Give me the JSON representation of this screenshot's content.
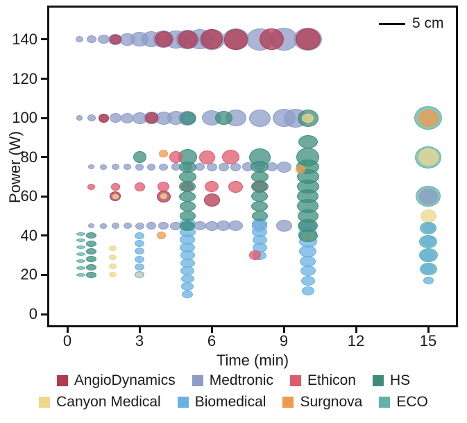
{
  "scalebar": {
    "label": "5 cm"
  },
  "axes": {
    "x": {
      "label": "Time (min)",
      "ticks": [
        0,
        3,
        6,
        9,
        12,
        15
      ]
    },
    "y": {
      "label": "Power (W)",
      "ticks": [
        0,
        20,
        40,
        60,
        80,
        100,
        120,
        140
      ]
    }
  },
  "brands": {
    "angiodynamics": {
      "label": "AngioDynamics",
      "color": "#b23a50"
    },
    "medtronic": {
      "label": "Medtronic",
      "color": "#8d9cc7"
    },
    "ethicon": {
      "label": "Ethicon",
      "color": "#e05a6e"
    },
    "hs": {
      "label": "HS",
      "color": "#3d8d7e"
    },
    "canyon": {
      "label": "Canyon Medical",
      "color": "#efd78d"
    },
    "biomedical": {
      "label": "Biomedical",
      "color": "#6ab1e2"
    },
    "surgnova": {
      "label": "Surgnova",
      "color": "#f09a4c"
    },
    "eco": {
      "label": "ECO",
      "color": "#62b3a6"
    }
  },
  "legend": {
    "rows": [
      [
        "angiodynamics",
        "medtronic",
        "ethicon",
        "hs"
      ],
      [
        "canyon",
        "biomedical",
        "surgnova",
        "eco"
      ]
    ]
  },
  "chart_data": {
    "type": "scatter",
    "subtype": "bubble",
    "xlabel": "Time (min)",
    "ylabel": "Power (W)",
    "x_range": [
      -0.8,
      16.2
    ],
    "y_range": [
      -7,
      157
    ],
    "size_scale_label": "5 cm",
    "point_format": [
      "time_min",
      "power_W",
      "bubble_w_px",
      "bubble_h_px",
      "brand"
    ],
    "points": [
      [
        0.5,
        140,
        11,
        9,
        "medtronic"
      ],
      [
        1,
        140,
        14,
        11,
        "medtronic"
      ],
      [
        1.5,
        140,
        17,
        13,
        "medtronic"
      ],
      [
        2,
        140,
        20,
        16,
        "medtronic"
      ],
      [
        2.5,
        140,
        23,
        18,
        "medtronic"
      ],
      [
        3,
        140,
        26,
        21,
        "medtronic"
      ],
      [
        3.5,
        140,
        28,
        23,
        "medtronic"
      ],
      [
        4,
        140,
        31,
        25,
        "medtronic"
      ],
      [
        4.5,
        140,
        33,
        26,
        "medtronic"
      ],
      [
        5,
        140,
        34,
        28,
        "medtronic"
      ],
      [
        5.5,
        140,
        36,
        29,
        "medtronic"
      ],
      [
        6,
        140,
        37,
        30,
        "medtronic"
      ],
      [
        7,
        140,
        38,
        31,
        "medtronic"
      ],
      [
        8,
        140,
        39,
        32,
        "medtronic"
      ],
      [
        9,
        140,
        40,
        33,
        "medtronic"
      ],
      [
        10,
        140,
        41,
        33,
        "medtronic"
      ],
      [
        2,
        140,
        17,
        14,
        "angiodynamics"
      ],
      [
        4,
        140,
        26,
        23,
        "angiodynamics"
      ],
      [
        5,
        140,
        29,
        26,
        "angiodynamics"
      ],
      [
        6,
        140,
        32,
        29,
        "angiodynamics"
      ],
      [
        7,
        140,
        34,
        30,
        "angiodynamics"
      ],
      [
        8.5,
        140,
        35,
        31,
        "angiodynamics"
      ],
      [
        10,
        140,
        36,
        31,
        "angiodynamics"
      ],
      [
        0.5,
        100,
        9,
        8,
        "medtronic"
      ],
      [
        1,
        100,
        12,
        10,
        "medtronic"
      ],
      [
        1.5,
        100,
        15,
        12,
        "medtronic"
      ],
      [
        2,
        100,
        17,
        14,
        "medtronic"
      ],
      [
        2.5,
        100,
        19,
        15,
        "medtronic"
      ],
      [
        3,
        100,
        21,
        17,
        "medtronic"
      ],
      [
        3.5,
        100,
        23,
        18,
        "medtronic"
      ],
      [
        4,
        100,
        24,
        19,
        "medtronic"
      ],
      [
        4.5,
        100,
        25,
        20,
        "medtronic"
      ],
      [
        5,
        100,
        26,
        21,
        "medtronic"
      ],
      [
        6,
        100,
        28,
        22,
        "medtronic"
      ],
      [
        7,
        100,
        30,
        24,
        "medtronic"
      ],
      [
        8,
        100,
        31,
        25,
        "medtronic"
      ],
      [
        9,
        100,
        33,
        26,
        "medtronic"
      ],
      [
        9.5,
        100,
        34,
        27,
        "medtronic"
      ],
      [
        1.5,
        100,
        15,
        13,
        "angiodynamics"
      ],
      [
        3.5,
        100,
        19,
        16,
        "angiodynamics"
      ],
      [
        5,
        100,
        23,
        19,
        "hs"
      ],
      [
        6.5,
        100,
        25,
        20,
        "hs"
      ],
      [
        10,
        100,
        30,
        25,
        "hs"
      ],
      [
        10,
        100,
        17,
        13,
        "canyon"
      ],
      [
        3,
        80,
        19,
        17,
        "hs"
      ],
      [
        5,
        80,
        27,
        23,
        "hs"
      ],
      [
        8,
        80,
        31,
        26,
        "hs"
      ],
      [
        10,
        80,
        33,
        27,
        "hs"
      ],
      [
        4.5,
        80,
        19,
        17,
        "ethicon"
      ],
      [
        5.8,
        80,
        23,
        20,
        "ethicon"
      ],
      [
        6.8,
        80,
        25,
        21,
        "ethicon"
      ],
      [
        4,
        82,
        13,
        11,
        "surgnova"
      ],
      [
        1,
        75,
        9,
        7,
        "medtronic"
      ],
      [
        1.5,
        75,
        10,
        8,
        "medtronic"
      ],
      [
        2,
        75,
        11,
        9,
        "medtronic"
      ],
      [
        2.5,
        75,
        11,
        9,
        "medtronic"
      ],
      [
        3,
        75,
        12,
        10,
        "medtronic"
      ],
      [
        3.5,
        75,
        12,
        10,
        "medtronic"
      ],
      [
        4,
        75,
        13,
        10,
        "medtronic"
      ],
      [
        4.5,
        75,
        13,
        11,
        "medtronic"
      ],
      [
        5,
        75,
        14,
        11,
        "medtronic"
      ],
      [
        5.5,
        75,
        14,
        11,
        "medtronic"
      ],
      [
        6,
        75,
        15,
        12,
        "medtronic"
      ],
      [
        6.5,
        75,
        15,
        12,
        "medtronic"
      ],
      [
        7,
        75,
        15,
        12,
        "medtronic"
      ],
      [
        7.5,
        75,
        16,
        13,
        "medtronic"
      ],
      [
        8,
        75,
        16,
        13,
        "medtronic"
      ],
      [
        8.5,
        75,
        16,
        13,
        "medtronic"
      ],
      [
        9,
        75,
        21,
        16,
        "medtronic"
      ],
      [
        1,
        65,
        11,
        9,
        "ethicon"
      ],
      [
        2,
        65,
        13,
        11,
        "ethicon"
      ],
      [
        3,
        65,
        15,
        13,
        "ethicon"
      ],
      [
        4,
        65,
        17,
        14,
        "ethicon"
      ],
      [
        5,
        65,
        18,
        15,
        "ethicon"
      ],
      [
        6,
        65,
        20,
        16,
        "ethicon"
      ],
      [
        7,
        65,
        21,
        17,
        "ethicon"
      ],
      [
        8,
        65,
        22,
        18,
        "ethicon"
      ],
      [
        2,
        60,
        16,
        14,
        "angiodynamics"
      ],
      [
        2,
        60,
        9,
        7,
        "canyon"
      ],
      [
        4,
        60,
        20,
        17,
        "angiodynamics"
      ],
      [
        4,
        60,
        10,
        8,
        "canyon"
      ],
      [
        6,
        58,
        23,
        19,
        "angiodynamics"
      ],
      [
        1,
        45,
        9,
        7,
        "medtronic"
      ],
      [
        1.5,
        45,
        10,
        8,
        "medtronic"
      ],
      [
        2,
        45,
        11,
        9,
        "medtronic"
      ],
      [
        2.5,
        45,
        12,
        9,
        "medtronic"
      ],
      [
        3,
        45,
        13,
        10,
        "medtronic"
      ],
      [
        3.5,
        45,
        14,
        11,
        "medtronic"
      ],
      [
        4,
        45,
        15,
        11,
        "medtronic"
      ],
      [
        4.5,
        45,
        16,
        12,
        "medtronic"
      ],
      [
        5,
        45,
        17,
        13,
        "medtronic"
      ],
      [
        5.5,
        45,
        18,
        13,
        "medtronic"
      ],
      [
        6,
        45,
        19,
        14,
        "medtronic"
      ],
      [
        6.5,
        45,
        20,
        15,
        "medtronic"
      ],
      [
        7,
        45,
        21,
        15,
        "medtronic"
      ],
      [
        8,
        45,
        22,
        16,
        "medtronic"
      ],
      [
        9,
        45,
        23,
        17,
        "medtronic"
      ],
      [
        10,
        45,
        25,
        18,
        "medtronic"
      ],
      [
        0.55,
        20,
        13,
        5,
        "eco"
      ],
      [
        0.55,
        23.5,
        13,
        5,
        "eco"
      ],
      [
        0.55,
        27,
        13,
        5,
        "eco"
      ],
      [
        0.55,
        30.5,
        13,
        5,
        "eco"
      ],
      [
        0.55,
        34,
        13,
        5,
        "eco"
      ],
      [
        0.55,
        37.5,
        13,
        5,
        "eco"
      ],
      [
        0.55,
        41,
        13,
        5,
        "eco"
      ],
      [
        1,
        20,
        15,
        9,
        "hs"
      ],
      [
        1,
        24,
        15,
        9,
        "hs"
      ],
      [
        1,
        28,
        15,
        9,
        "hs"
      ],
      [
        1,
        32,
        15,
        9,
        "hs"
      ],
      [
        1,
        36,
        15,
        9,
        "hs"
      ],
      [
        1,
        40,
        15,
        9,
        "hs"
      ],
      [
        1.9,
        20,
        11,
        8,
        "canyon"
      ],
      [
        1.9,
        24.5,
        11,
        8,
        "canyon"
      ],
      [
        1.9,
        29,
        11,
        8,
        "canyon"
      ],
      [
        1.9,
        33.5,
        11,
        8,
        "canyon"
      ],
      [
        3,
        20,
        14,
        10,
        "biomedical"
      ],
      [
        3,
        24,
        14,
        10,
        "biomedical"
      ],
      [
        3,
        28,
        14,
        10,
        "biomedical"
      ],
      [
        3,
        32,
        14,
        10,
        "biomedical"
      ],
      [
        3,
        36,
        14,
        10,
        "biomedical"
      ],
      [
        3,
        40,
        14,
        10,
        "biomedical"
      ],
      [
        3,
        20,
        10,
        7,
        "canyon"
      ],
      [
        3.9,
        40,
        13,
        11,
        "surgnova"
      ],
      [
        5,
        10,
        16,
        11,
        "biomedical"
      ],
      [
        5,
        14,
        18,
        12,
        "biomedical"
      ],
      [
        5,
        18,
        19,
        12,
        "biomedical"
      ],
      [
        5,
        22,
        20,
        13,
        "biomedical"
      ],
      [
        5,
        26,
        21,
        13,
        "biomedical"
      ],
      [
        5,
        30,
        21,
        14,
        "biomedical"
      ],
      [
        5,
        34,
        22,
        14,
        "biomedical"
      ],
      [
        5,
        38,
        22,
        15,
        "biomedical"
      ],
      [
        5,
        42,
        23,
        15,
        "biomedical"
      ],
      [
        5,
        46,
        23,
        15,
        "biomedical"
      ],
      [
        5,
        45,
        22,
        14,
        "hs"
      ],
      [
        5,
        50,
        23,
        15,
        "hs"
      ],
      [
        5,
        55,
        23,
        15,
        "hs"
      ],
      [
        5,
        60,
        24,
        15,
        "hs"
      ],
      [
        5,
        65,
        24,
        16,
        "hs"
      ],
      [
        5,
        70,
        25,
        16,
        "hs"
      ],
      [
        5,
        75,
        25,
        16,
        "hs"
      ],
      [
        8,
        30,
        20,
        13,
        "biomedical"
      ],
      [
        8,
        34,
        21,
        14,
        "biomedical"
      ],
      [
        8,
        38,
        21,
        14,
        "biomedical"
      ],
      [
        8,
        42,
        22,
        15,
        "biomedical"
      ],
      [
        8,
        46,
        22,
        15,
        "biomedical"
      ],
      [
        7.8,
        30,
        17,
        14,
        "ethicon"
      ],
      [
        8,
        50,
        23,
        15,
        "hs"
      ],
      [
        8,
        55,
        24,
        15,
        "hs"
      ],
      [
        8,
        60,
        24,
        16,
        "hs"
      ],
      [
        8,
        65,
        25,
        16,
        "hs"
      ],
      [
        8,
        70,
        25,
        16,
        "hs"
      ],
      [
        8,
        75,
        26,
        17,
        "hs"
      ],
      [
        10,
        12,
        18,
        13,
        "biomedical"
      ],
      [
        10,
        17,
        20,
        14,
        "biomedical"
      ],
      [
        10,
        22,
        22,
        15,
        "biomedical"
      ],
      [
        10,
        27,
        23,
        16,
        "biomedical"
      ],
      [
        10,
        32,
        25,
        17,
        "biomedical"
      ],
      [
        10,
        37,
        26,
        17,
        "biomedical"
      ],
      [
        10,
        41,
        27,
        18,
        "biomedical"
      ],
      [
        10,
        40,
        18,
        14,
        "canyon"
      ],
      [
        10,
        40,
        28,
        18,
        "hs"
      ],
      [
        10,
        45,
        29,
        19,
        "hs"
      ],
      [
        10,
        50,
        30,
        19,
        "hs"
      ],
      [
        10,
        55,
        31,
        20,
        "hs"
      ],
      [
        10,
        60,
        31,
        20,
        "hs"
      ],
      [
        10,
        65,
        32,
        20,
        "hs"
      ],
      [
        10,
        70,
        32,
        21,
        "hs"
      ],
      [
        10,
        75,
        33,
        21,
        "hs"
      ],
      [
        10,
        88,
        28,
        19,
        "hs"
      ],
      [
        9.7,
        74,
        14,
        12,
        "surgnova"
      ],
      [
        15,
        100,
        40,
        34,
        "eco"
      ],
      [
        15,
        100,
        29,
        25,
        "surgnova"
      ],
      [
        15,
        80,
        38,
        32,
        "eco"
      ],
      [
        15,
        80,
        29,
        25,
        "canyon"
      ],
      [
        15,
        60,
        36,
        30,
        "eco"
      ],
      [
        15,
        60,
        27,
        23,
        "medtronic"
      ],
      [
        15,
        50,
        23,
        19,
        "canyon"
      ],
      [
        15,
        44,
        24,
        18,
        "eco"
      ],
      [
        15,
        44,
        19,
        15,
        "biomedical"
      ],
      [
        15,
        37,
        26,
        19,
        "eco"
      ],
      [
        15,
        37,
        21,
        16,
        "biomedical"
      ],
      [
        15,
        30,
        27,
        20,
        "eco"
      ],
      [
        15,
        30,
        22,
        17,
        "biomedical"
      ],
      [
        15,
        23,
        25,
        18,
        "eco"
      ],
      [
        15,
        23,
        20,
        15,
        "biomedical"
      ],
      [
        15,
        17,
        15,
        11,
        "biomedical"
      ]
    ]
  }
}
